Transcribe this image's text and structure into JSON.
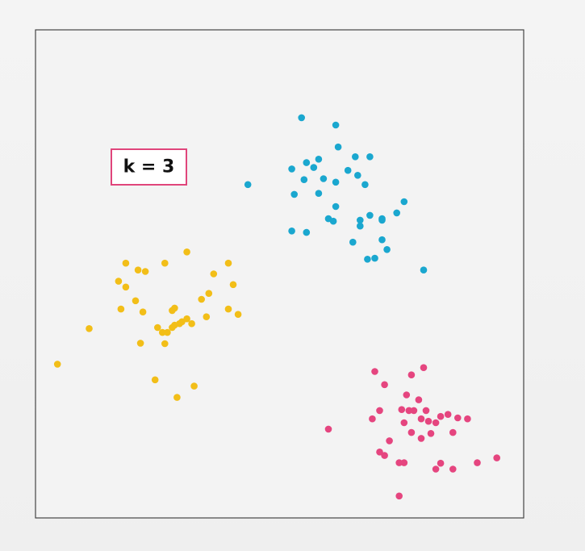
{
  "chart_data": {
    "type": "scatter",
    "title": "",
    "xlabel": "",
    "ylabel": "",
    "xlim": [
      0,
      100
    ],
    "ylim": [
      0,
      100
    ],
    "grid": false,
    "annotation": "k = 3",
    "series": [
      {
        "color": "#1aa7cf",
        "points": [
          [
            54.5,
            82.0
          ],
          [
            61.5,
            80.5
          ],
          [
            43.5,
            68.3
          ],
          [
            52.5,
            71.5
          ],
          [
            55.5,
            72.8
          ],
          [
            58.0,
            73.5
          ],
          [
            62.0,
            76.0
          ],
          [
            65.5,
            74.0
          ],
          [
            68.5,
            74.0
          ],
          [
            53.0,
            66.3
          ],
          [
            57.0,
            71.8
          ],
          [
            61.5,
            68.8
          ],
          [
            64.0,
            71.2
          ],
          [
            66.0,
            70.2
          ],
          [
            67.5,
            68.3
          ],
          [
            55.0,
            69.3
          ],
          [
            59.0,
            69.5
          ],
          [
            61.5,
            63.8
          ],
          [
            60.0,
            61.3
          ],
          [
            61.0,
            60.8
          ],
          [
            66.5,
            61.0
          ],
          [
            68.5,
            62.0
          ],
          [
            71.0,
            61.0
          ],
          [
            74.0,
            62.5
          ],
          [
            75.5,
            64.8
          ],
          [
            52.5,
            58.8
          ],
          [
            55.5,
            58.5
          ],
          [
            65.0,
            56.5
          ],
          [
            71.0,
            57.0
          ],
          [
            71.0,
            61.3
          ],
          [
            72.0,
            55.0
          ],
          [
            68.0,
            53.0
          ],
          [
            69.5,
            53.2
          ],
          [
            66.5,
            59.8
          ],
          [
            79.5,
            50.8
          ],
          [
            58.0,
            66.5
          ]
        ]
      },
      {
        "color": "#f2be18",
        "points": [
          [
            31.0,
            54.5
          ],
          [
            39.5,
            52.2
          ],
          [
            18.5,
            52.2
          ],
          [
            21.0,
            50.8
          ],
          [
            22.5,
            50.5
          ],
          [
            26.5,
            52.2
          ],
          [
            17.0,
            48.5
          ],
          [
            18.5,
            47.3
          ],
          [
            36.5,
            50.0
          ],
          [
            40.5,
            47.8
          ],
          [
            20.5,
            44.5
          ],
          [
            22.0,
            42.2
          ],
          [
            28.0,
            42.5
          ],
          [
            28.5,
            43.0
          ],
          [
            34.0,
            44.8
          ],
          [
            35.5,
            46.0
          ],
          [
            39.5,
            42.8
          ],
          [
            41.5,
            41.7
          ],
          [
            17.5,
            42.8
          ],
          [
            25.0,
            39.0
          ],
          [
            27.0,
            38.0
          ],
          [
            28.5,
            39.5
          ],
          [
            29.5,
            39.8
          ],
          [
            31.0,
            40.8
          ],
          [
            32.0,
            39.8
          ],
          [
            35.0,
            41.2
          ],
          [
            11.0,
            38.8
          ],
          [
            21.5,
            35.8
          ],
          [
            26.5,
            35.7
          ],
          [
            28.0,
            39.0
          ],
          [
            4.5,
            31.5
          ],
          [
            24.5,
            28.3
          ],
          [
            32.5,
            27.0
          ],
          [
            29.0,
            24.7
          ],
          [
            26.0,
            38.0
          ],
          [
            30.0,
            40.2
          ]
        ]
      },
      {
        "color": "#e5457f",
        "points": [
          [
            69.5,
            30.0
          ],
          [
            79.5,
            30.8
          ],
          [
            77.0,
            29.3
          ],
          [
            71.5,
            27.3
          ],
          [
            76.0,
            25.2
          ],
          [
            78.5,
            24.2
          ],
          [
            70.5,
            22.0
          ],
          [
            75.0,
            22.2
          ],
          [
            76.5,
            22.0
          ],
          [
            77.5,
            22.0
          ],
          [
            80.0,
            22.0
          ],
          [
            83.0,
            20.8
          ],
          [
            84.5,
            21.2
          ],
          [
            86.5,
            20.5
          ],
          [
            88.5,
            20.3
          ],
          [
            69.0,
            20.3
          ],
          [
            75.5,
            19.5
          ],
          [
            79.0,
            20.3
          ],
          [
            80.5,
            19.8
          ],
          [
            82.0,
            19.5
          ],
          [
            85.5,
            17.5
          ],
          [
            60.0,
            18.2
          ],
          [
            79.0,
            16.3
          ],
          [
            72.5,
            15.8
          ],
          [
            77.0,
            17.5
          ],
          [
            70.5,
            13.5
          ],
          [
            71.5,
            12.8
          ],
          [
            74.5,
            11.3
          ],
          [
            75.5,
            11.3
          ],
          [
            83.0,
            11.2
          ],
          [
            90.5,
            11.3
          ],
          [
            94.5,
            12.3
          ],
          [
            82.0,
            10.0
          ],
          [
            85.5,
            10.0
          ],
          [
            74.5,
            4.5
          ],
          [
            81.0,
            17.3
          ]
        ]
      }
    ]
  }
}
